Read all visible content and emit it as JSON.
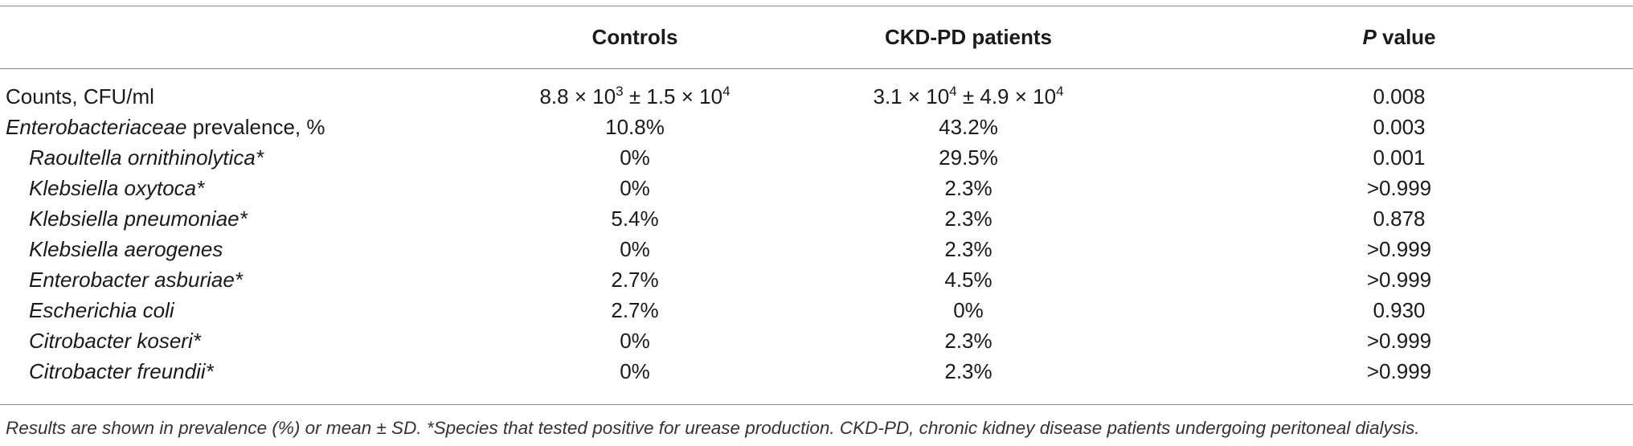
{
  "table": {
    "headers": {
      "label": "",
      "controls": "Controls",
      "ckd_pd": "CKD-PD patients",
      "p_value_italic": "P",
      "p_value_rest": " value"
    },
    "counts_row": {
      "label": "Counts, CFU/ml",
      "controls": {
        "mantissa": "8.8",
        "times": " × 10",
        "exp": "3",
        "pm": " ± 1.5 × 10",
        "exp2": "4"
      },
      "ckd_pd": {
        "mantissa": "3.1",
        "times": " × 10",
        "exp": "4",
        "pm": " ± 4.9 × 10",
        "exp2": "4"
      },
      "p": "0.008"
    },
    "prevalence_row": {
      "label_italic": "Enterobacteriaceae",
      "label_rest": " prevalence, %",
      "controls": "10.8%",
      "ckd_pd": "43.2%",
      "p": "0.003"
    },
    "species": [
      {
        "name": "Raoultella ornithinolytica*",
        "controls": "0%",
        "ckd_pd": "29.5%",
        "p": "0.001"
      },
      {
        "name": "Klebsiella oxytoca*",
        "controls": "0%",
        "ckd_pd": "2.3%",
        "p": ">0.999"
      },
      {
        "name": "Klebsiella pneumoniae*",
        "controls": "5.4%",
        "ckd_pd": "2.3%",
        "p": "0.878"
      },
      {
        "name": "Klebsiella aerogenes",
        "controls": "0%",
        "ckd_pd": "2.3%",
        "p": ">0.999"
      },
      {
        "name": "Enterobacter asburiae*",
        "controls": "2.7%",
        "ckd_pd": "4.5%",
        "p": ">0.999"
      },
      {
        "name": "Escherichia coli",
        "controls": "2.7%",
        "ckd_pd": "0%",
        "p": "0.930"
      },
      {
        "name": "Citrobacter koseri*",
        "controls": "0%",
        "ckd_pd": "2.3%",
        "p": ">0.999"
      },
      {
        "name": "Citrobacter freundii*",
        "controls": "0%",
        "ckd_pd": "2.3%",
        "p": ">0.999"
      }
    ]
  },
  "footnote": "Results are shown in prevalence (%) or mean ± SD. *Species that tested positive for urease production. CKD-PD, chronic kidney disease patients undergoing peritoneal dialysis."
}
